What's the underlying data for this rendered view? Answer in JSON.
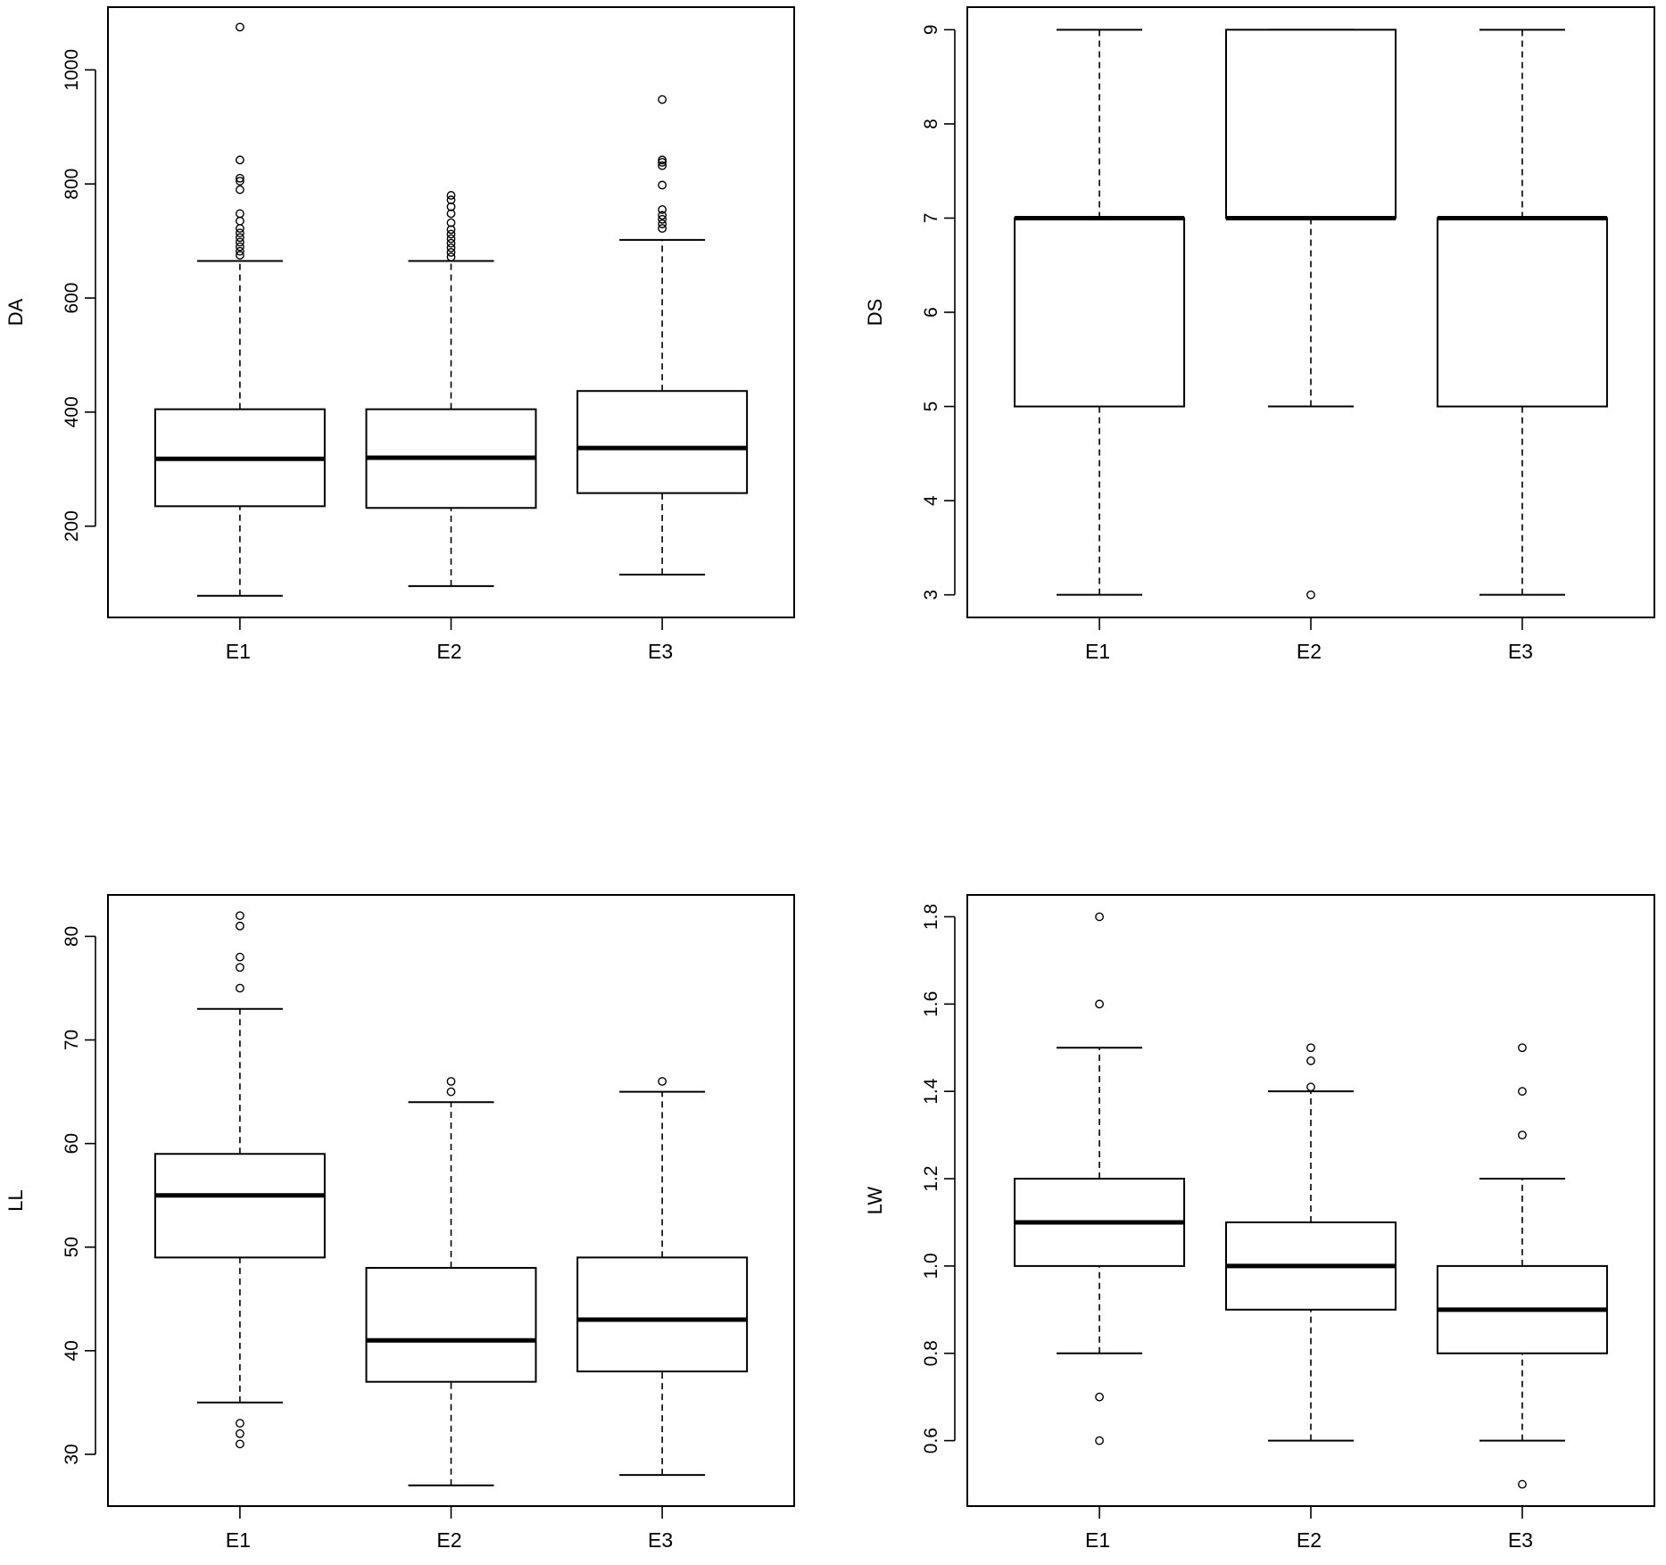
{
  "chart_data": [
    {
      "type": "boxplot",
      "ylabel": "DA",
      "categories": [
        "E1",
        "E2",
        "E3"
      ],
      "ylim": [
        40,
        1110
      ],
      "yticks": [
        200,
        400,
        600,
        800,
        1000
      ],
      "boxes": [
        {
          "category": "E1",
          "whisker_low": 78,
          "q1": 235,
          "median": 318,
          "q3": 405,
          "whisker_high": 665,
          "outliers": [
            675,
            682,
            690,
            698,
            706,
            714,
            722,
            735,
            748,
            790,
            805,
            810,
            842,
            1075
          ]
        },
        {
          "category": "E2",
          "whisker_low": 95,
          "q1": 232,
          "median": 320,
          "q3": 405,
          "whisker_high": 665,
          "outliers": [
            672,
            680,
            688,
            696,
            704,
            712,
            720,
            732,
            748,
            760,
            772,
            780
          ]
        },
        {
          "category": "E3",
          "whisker_low": 115,
          "q1": 258,
          "median": 337,
          "q3": 437,
          "whisker_high": 702,
          "outliers": [
            722,
            730,
            738,
            745,
            755,
            798,
            832,
            838,
            842,
            948
          ]
        }
      ]
    },
    {
      "type": "boxplot",
      "ylabel": "DS",
      "categories": [
        "E1",
        "E2",
        "E3"
      ],
      "ylim": [
        2.76,
        9.24
      ],
      "yticks": [
        3,
        4,
        5,
        6,
        7,
        8,
        9
      ],
      "boxes": [
        {
          "category": "E1",
          "whisker_low": 3,
          "q1": 5,
          "median": 7,
          "q3": 7,
          "whisker_high": 9,
          "outliers": []
        },
        {
          "category": "E2",
          "whisker_low": 5,
          "q1": 7,
          "median": 7,
          "q3": 9,
          "whisker_high": 9,
          "outliers": [
            3
          ]
        },
        {
          "category": "E3",
          "whisker_low": 3,
          "q1": 5,
          "median": 7,
          "q3": 7,
          "whisker_high": 9,
          "outliers": []
        }
      ]
    },
    {
      "type": "boxplot",
      "ylabel": "LL",
      "categories": [
        "E1",
        "E2",
        "E3"
      ],
      "ylim": [
        25.0,
        84.0
      ],
      "yticks": [
        30,
        40,
        50,
        60,
        70,
        80
      ],
      "boxes": [
        {
          "category": "E1",
          "whisker_low": 35,
          "q1": 49,
          "median": 55,
          "q3": 59,
          "whisker_high": 73,
          "outliers": [
            31,
            32,
            33,
            75,
            77,
            78,
            81,
            82
          ]
        },
        {
          "category": "E2",
          "whisker_low": 27,
          "q1": 37,
          "median": 41,
          "q3": 48,
          "whisker_high": 64,
          "outliers": [
            65,
            66
          ]
        },
        {
          "category": "E3",
          "whisker_low": 28,
          "q1": 38,
          "median": 43,
          "q3": 49,
          "whisker_high": 65,
          "outliers": [
            66
          ]
        }
      ]
    },
    {
      "type": "boxplot",
      "ylabel": "LW",
      "categories": [
        "E1",
        "E2",
        "E3"
      ],
      "ylim": [
        0.45,
        1.85
      ],
      "yticks": [
        0.6,
        0.8,
        1.0,
        1.2,
        1.4,
        1.6,
        1.8
      ],
      "ytick_labels": [
        "0.6",
        "0.8",
        "1.0",
        "1.2",
        "1.4",
        "1.6",
        "1.8"
      ],
      "boxes": [
        {
          "category": "E1",
          "whisker_low": 0.8,
          "q1": 1.0,
          "median": 1.1,
          "q3": 1.2,
          "whisker_high": 1.5,
          "outliers": [
            0.6,
            0.7,
            1.6,
            1.8
          ]
        },
        {
          "category": "E2",
          "whisker_low": 0.6,
          "q1": 0.9,
          "median": 1.0,
          "q3": 1.1,
          "whisker_high": 1.4,
          "outliers": [
            1.41,
            1.47,
            1.5
          ]
        },
        {
          "category": "E3",
          "whisker_low": 0.6,
          "q1": 0.8,
          "median": 0.9,
          "q3": 1.0,
          "whisker_high": 1.2,
          "outliers": [
            0.5,
            1.3,
            1.4,
            1.5
          ]
        }
      ]
    }
  ]
}
